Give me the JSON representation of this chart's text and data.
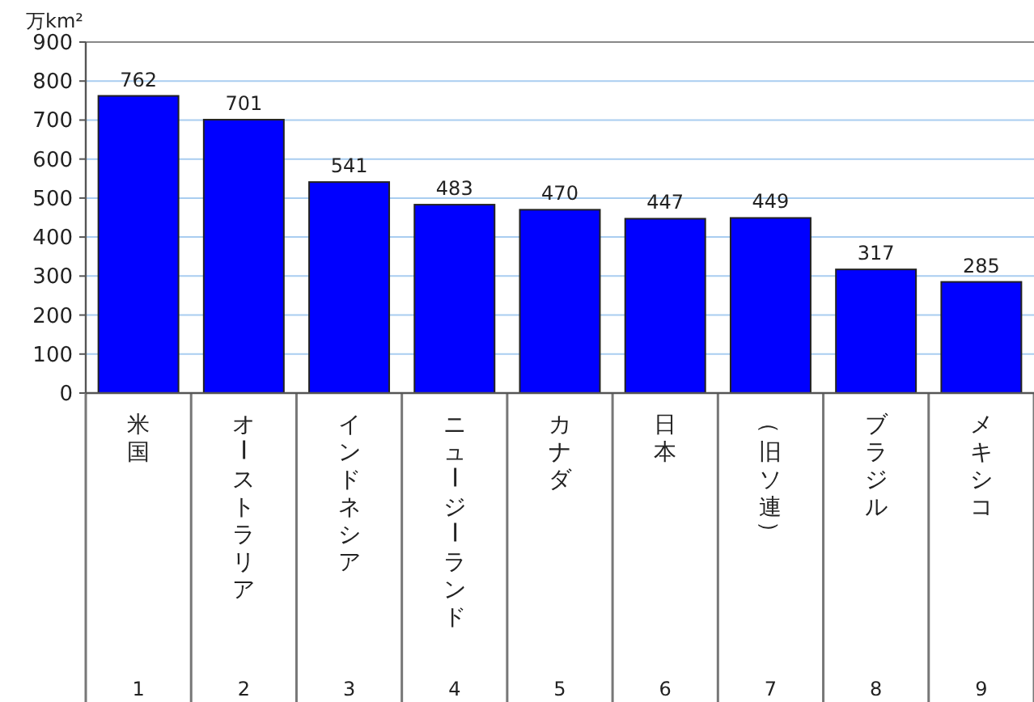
{
  "chart_data": {
    "type": "bar",
    "ylabel": "万km²",
    "categories": [
      "米国",
      "オーストラリア",
      "インドネシア",
      "ニュージーランド",
      "カナダ",
      "日本",
      "（旧ソ連）",
      "ブラジル",
      "メキシコ"
    ],
    "values": [
      762,
      701,
      541,
      483,
      470,
      447,
      449,
      317,
      285
    ],
    "color": "#0000ff",
    "ylim": [
      0,
      900
    ],
    "yticks": [
      0,
      100,
      200,
      300,
      400,
      500,
      600,
      700,
      800,
      900
    ],
    "grid": "y",
    "data_labels": true,
    "annotations": [
      "1",
      "2",
      "3",
      "4",
      "5",
      "6",
      "7",
      "8",
      "9"
    ]
  }
}
